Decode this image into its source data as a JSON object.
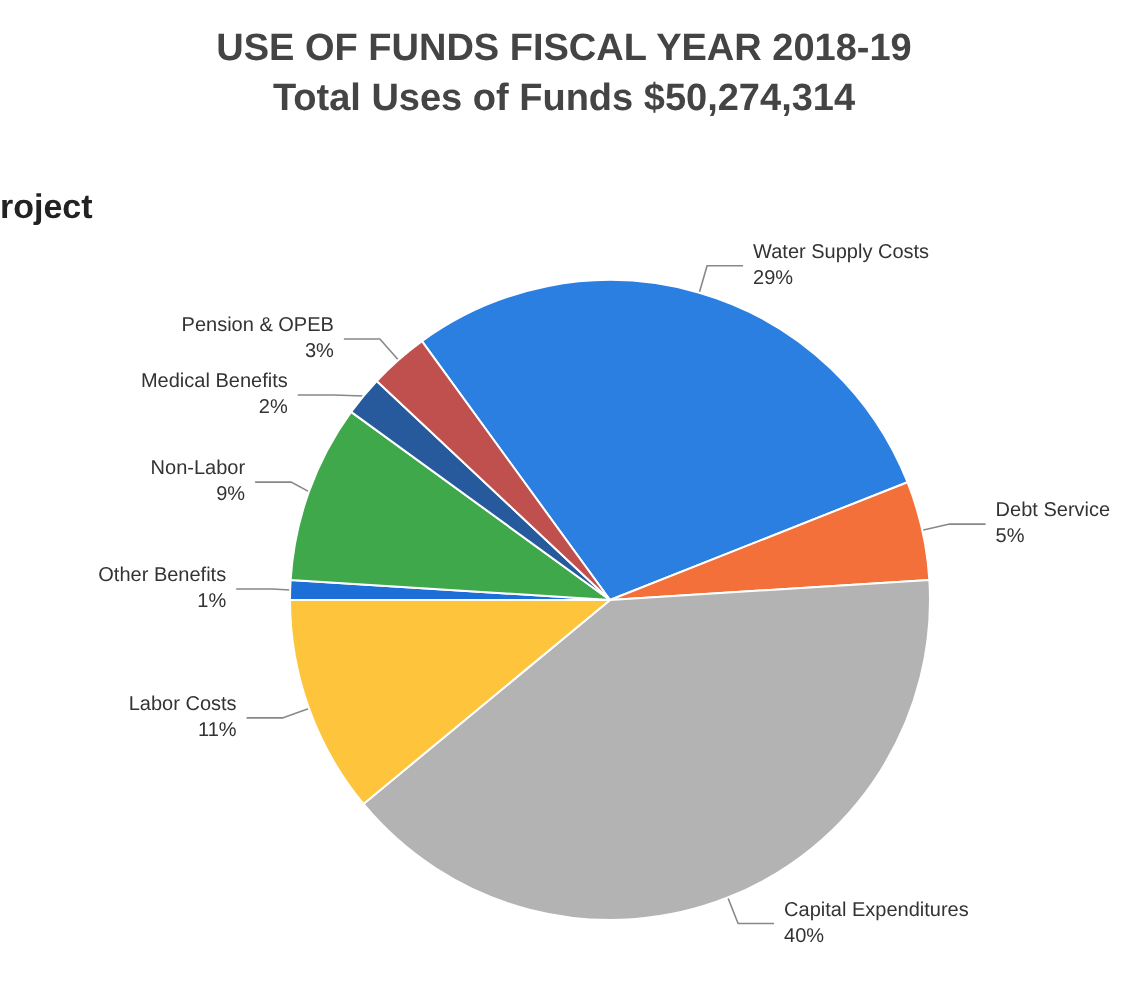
{
  "chart_data": {
    "type": "pie",
    "title": "USE OF FUNDS FISCAL YEAR 2018-19",
    "subtitle": "Total Uses of Funds $50,274,314",
    "annotations": [
      "roject"
    ],
    "categories": [
      "Water Supply Costs",
      "Debt Service",
      "Capital Expenditures",
      "Labor Costs",
      "Other Benefits",
      "Non-Labor",
      "Medical Benefits",
      "Pension & OPEB"
    ],
    "values": [
      29,
      5,
      40,
      11,
      1,
      9,
      2,
      3
    ],
    "value_labels": [
      "29%",
      "5%",
      "40%",
      "11%",
      "1%",
      "9%",
      "2%",
      "3%"
    ],
    "colors": [
      "#2a7fe0",
      "#f4703a",
      "#b3b3b3",
      "#fdc43c",
      "#1c6fd6",
      "#3fa84a",
      "#275a9c",
      "#c0504d"
    ],
    "legend": false
  }
}
